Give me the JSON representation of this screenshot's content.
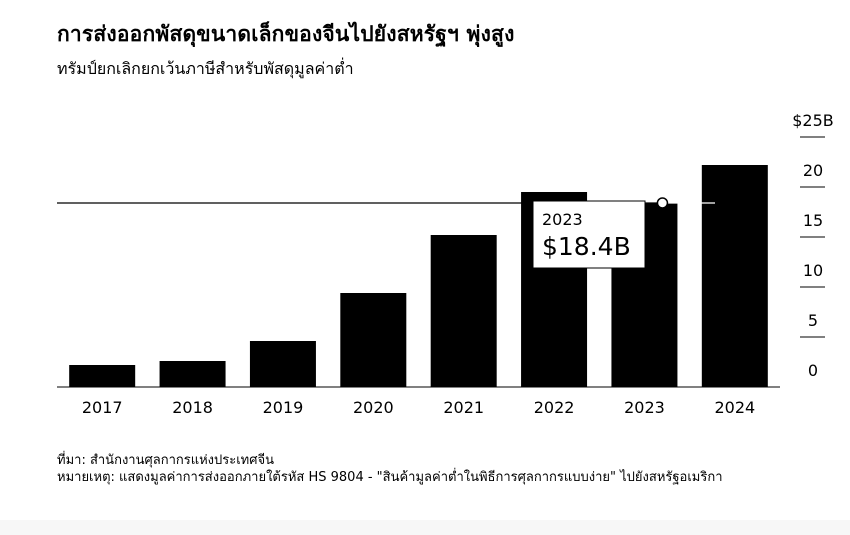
{
  "header": {
    "title": "การส่งออกพัสดุขนาดเล็กของจีนไปยังสหรัฐฯ พุ่งสูง",
    "subtitle": "ทรัมป์ยกเลิกยกเว้นภาษีสำหรับพัสดุมูลค่าต่ำ"
  },
  "chart_data": {
    "type": "bar",
    "categories": [
      "2017",
      "2018",
      "2019",
      "2020",
      "2021",
      "2022",
      "2023",
      "2024"
    ],
    "values": [
      2.2,
      2.6,
      4.6,
      9.4,
      15.2,
      19.5,
      18.4,
      22.2
    ],
    "ylim": [
      0,
      25
    ],
    "yticks": [
      0,
      5,
      10,
      15,
      20,
      25
    ],
    "ytick_labels": [
      "0",
      "5",
      "10",
      "15",
      "20",
      "$25B"
    ],
    "ylabel": "",
    "xlabel": "",
    "bar_color": "#000000",
    "annotation": {
      "category": "2023",
      "year_label": "2023",
      "value_label": "$18.4B",
      "value": 18.4
    }
  },
  "footer": {
    "source": "ที่มา: สำนักงานศุลกากรแห่งประเทศจีน",
    "note": "หมายเหตุ: แสดงมูลค่าการส่งออกภายใต้รหัส HS 9804 - \"สินค้ามูลค่าต่ำในพิธีการศุลกากรแบบง่าย\" ไปยังสหรัฐอเมริกา"
  }
}
